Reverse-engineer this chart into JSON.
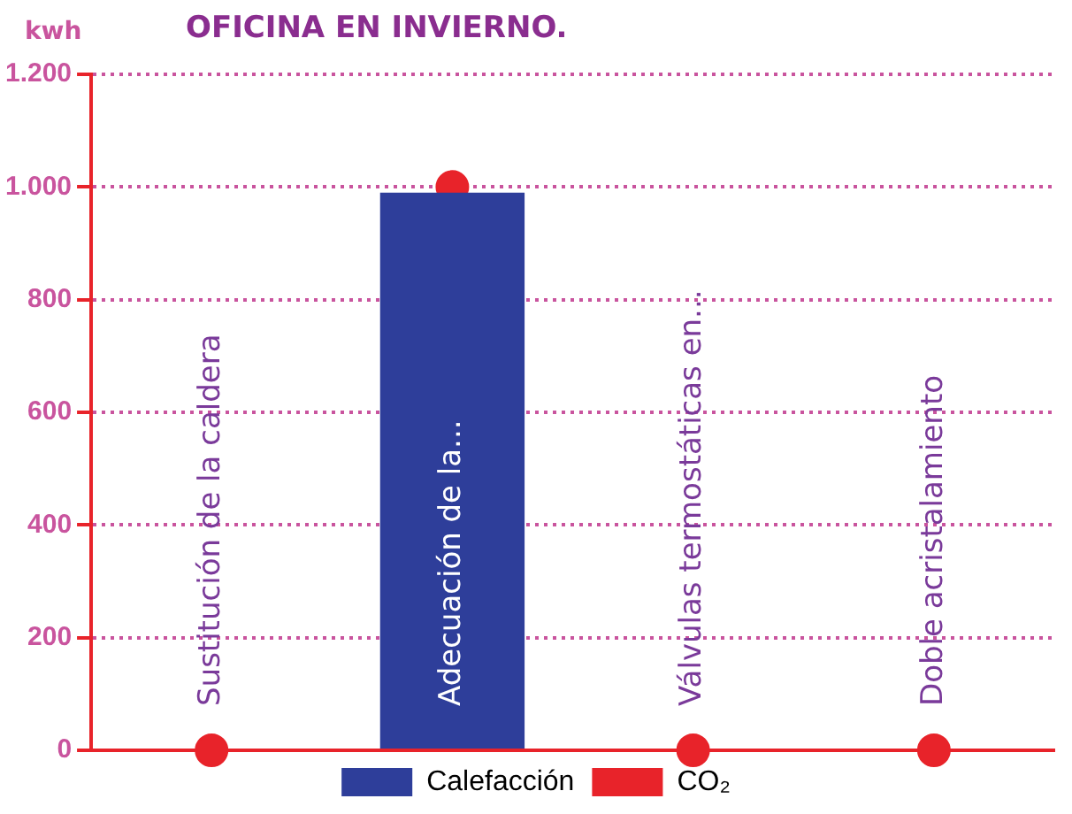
{
  "chart_data": {
    "type": "bar",
    "title": "OFICINA EN INVIERNO.",
    "ylabel": "kwh",
    "categories": [
      "Sustitución de la caldera",
      "Adecuación de la...",
      "Válvulas termostáticas en...",
      "Doble acristalamiento"
    ],
    "series": [
      {
        "name": "Calefacción",
        "color": "#2e3e9a",
        "values": [
          null,
          990,
          null,
          null
        ]
      },
      {
        "name": "CO₂",
        "type": "scatter",
        "color": "#e8232a",
        "values": [
          0,
          1000,
          0,
          0
        ]
      }
    ],
    "ylim": [
      0,
      1200
    ],
    "yticks": [
      {
        "value": 0,
        "label": "0"
      },
      {
        "value": 200,
        "label": "200"
      },
      {
        "value": 400,
        "label": "400"
      },
      {
        "value": 600,
        "label": "600"
      },
      {
        "value": 800,
        "label": "800"
      },
      {
        "value": 1000,
        "label": "1.000"
      },
      {
        "value": 1200,
        "label": "1.200"
      }
    ],
    "grid": "y",
    "legend": "bottom",
    "marker": "circle"
  }
}
